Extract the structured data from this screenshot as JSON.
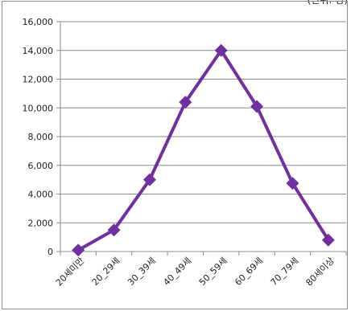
{
  "unit_note": "(단위: 명)",
  "chart_data": {
    "type": "line",
    "categories": [
      "20세미만",
      "20_29세",
      "30_39세",
      "40_49세",
      "50_59세",
      "60_69세",
      "70_79세",
      "80세이상"
    ],
    "series": [
      {
        "values": [
          100,
          1500,
          5000,
          10400,
          14000,
          10100,
          4750,
          800
        ]
      }
    ],
    "ylim": [
      0,
      16000
    ],
    "yticks": [
      0,
      2000,
      4000,
      6000,
      8000,
      10000,
      12000,
      14000,
      16000
    ],
    "ytick_labels": [
      "0",
      "2,000",
      "4,000",
      "6,000",
      "8,000",
      "10,000",
      "12,000",
      "14,000",
      "16,000"
    ],
    "grid": true,
    "line_color": "#7030a0",
    "grid_color": "#8c8c8c"
  }
}
